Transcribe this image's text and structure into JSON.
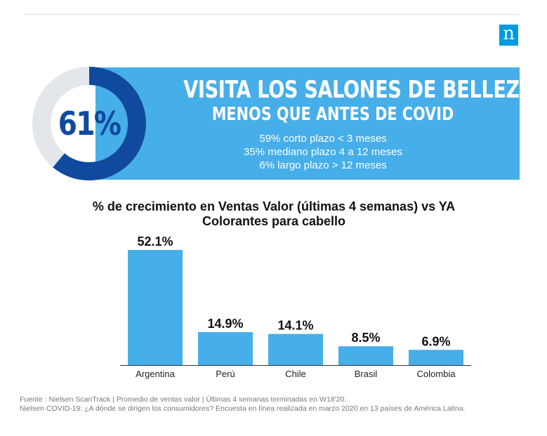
{
  "banner": {
    "percent": "61%",
    "percent_value": 61,
    "headline_line1": "VISITA LOS SALONES DE BELLEZA",
    "headline_line2": "MENOS QUE ANTES DE COVID",
    "detail_lines": [
      "59% corto plazo  < 3 meses",
      "35% mediano plazo 4 a 12 meses",
      "6% largo plazo > 12 meses"
    ],
    "logo_letter": "n"
  },
  "colors": {
    "banner_blue": "#46aee9",
    "donut_navy": "#0f4a9e",
    "donut_track": "#e3e6ea",
    "bar_blue": "#46aee9",
    "logo_blue": "#009ade"
  },
  "chart_data": {
    "type": "bar",
    "title_line1": "% de crecimiento en Ventas Valor (últimas 4 semanas) vs YA",
    "title_line2": "Colorantes para cabello",
    "categories": [
      "Argentina",
      "Perú",
      "Chile",
      "Brasil",
      "Colombia"
    ],
    "values": [
      52.1,
      14.9,
      14.1,
      8.5,
      6.9
    ],
    "value_labels": [
      "52.1%",
      "14.9%",
      "14.1%",
      "8.5%",
      "6.9%"
    ],
    "ylim": [
      0,
      52.1
    ],
    "grid": false,
    "legend": "none"
  },
  "footnote": {
    "line1": "Fuente : Nielsen ScanTrack | Promedio de ventas valor | Últimas 4 semanas terminadas en W18'20.",
    "line2": "Nielsen COVID-19: ¿A dónde se dirigen los consumidores? Encuesta en línea realizada en marzo 2020 en 13 países de América Latina."
  }
}
